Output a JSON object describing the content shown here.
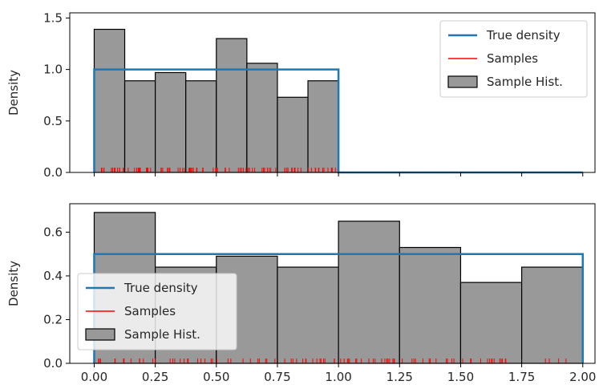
{
  "chart_data": [
    {
      "type": "bar",
      "subtype": "histogram-with-density-and-rug",
      "ylabel": "Density",
      "xlim": [
        -0.1,
        2.05
      ],
      "ylim": [
        0,
        1.55
      ],
      "yticks": [
        0.0,
        0.5,
        1.0,
        1.5
      ],
      "ytick_labels": [
        "0.0",
        "0.5",
        "1.0",
        "1.5"
      ],
      "show_x_tick_labels": false,
      "bins": [
        [
          0.0,
          0.125,
          1.39
        ],
        [
          0.125,
          0.25,
          0.89
        ],
        [
          0.25,
          0.375,
          0.97
        ],
        [
          0.375,
          0.5,
          0.89
        ],
        [
          0.5,
          0.625,
          1.3
        ],
        [
          0.625,
          0.75,
          1.06
        ],
        [
          0.75,
          0.875,
          0.73
        ],
        [
          0.875,
          1.0,
          0.89
        ]
      ],
      "true_density": {
        "x": [
          0.0,
          0.0,
          1.0,
          1.0,
          2.0
        ],
        "y": [
          0.0,
          1.0,
          1.0,
          0.0,
          0.0
        ]
      },
      "samples_range": [
        0.0,
        1.0
      ],
      "legend": {
        "placement": "upper right",
        "entries": [
          {
            "label": "True density",
            "kind": "line",
            "color": "#1f77b4"
          },
          {
            "label": "Samples",
            "kind": "line",
            "color": "#ff0000"
          },
          {
            "label": "Sample Hist.",
            "kind": "patch",
            "color": "#999999"
          }
        ]
      }
    },
    {
      "type": "bar",
      "subtype": "histogram-with-density-and-rug",
      "ylabel": "Density",
      "xlim": [
        -0.1,
        2.05
      ],
      "ylim": [
        0,
        0.73
      ],
      "yticks": [
        0.0,
        0.2,
        0.4,
        0.6
      ],
      "ytick_labels": [
        "0.0",
        "0.2",
        "0.4",
        "0.6"
      ],
      "xticks": [
        0.0,
        0.25,
        0.5,
        0.75,
        1.0,
        1.25,
        1.5,
        1.75,
        2.0
      ],
      "xtick_labels": [
        "0.00",
        "0.25",
        "0.50",
        "0.75",
        "1.00",
        "1.25",
        "1.50",
        "1.75",
        "2.00"
      ],
      "show_x_tick_labels": true,
      "bins": [
        [
          0.0,
          0.25,
          0.69
        ],
        [
          0.25,
          0.5,
          0.44
        ],
        [
          0.5,
          0.75,
          0.49
        ],
        [
          0.75,
          1.0,
          0.44
        ],
        [
          1.0,
          1.25,
          0.65
        ],
        [
          1.25,
          1.5,
          0.53
        ],
        [
          1.5,
          1.75,
          0.37
        ],
        [
          1.75,
          2.0,
          0.44
        ]
      ],
      "true_density": {
        "x": [
          0.0,
          0.0,
          2.0,
          2.0
        ],
        "y": [
          0.0,
          0.5,
          0.5,
          0.0
        ]
      },
      "samples_range": [
        0.0,
        2.0
      ],
      "legend": {
        "placement": "lower left",
        "entries": [
          {
            "label": "True density",
            "kind": "line",
            "color": "#1f77b4"
          },
          {
            "label": "Samples",
            "kind": "line",
            "color": "#ff0000"
          },
          {
            "label": "Sample Hist.",
            "kind": "patch",
            "color": "#999999"
          }
        ]
      }
    }
  ],
  "colors": {
    "hist_fill": "#999999",
    "hist_edge": "#000000",
    "density_line": "#1f77b4",
    "rug": "#ff0000",
    "axes": "#000000"
  }
}
